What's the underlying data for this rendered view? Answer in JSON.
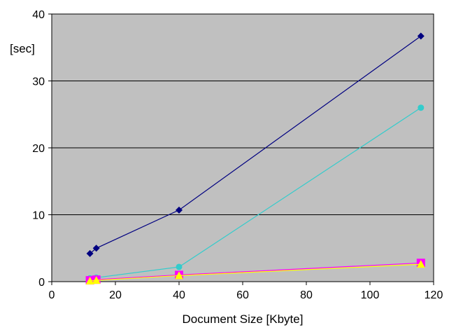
{
  "chart_data": {
    "type": "line",
    "xlabel": "Document Size [Kbyte]",
    "ylabel": "[sec]",
    "xlim": [
      0,
      120
    ],
    "ylim": [
      0,
      40
    ],
    "x_ticks": [
      0,
      20,
      40,
      60,
      80,
      100,
      120
    ],
    "y_ticks": [
      0,
      10,
      20,
      30,
      40
    ],
    "grid": {
      "y": true,
      "x": false
    },
    "plot_background": "#c0c0c0",
    "legend": "none",
    "series": [
      {
        "color": "#000080",
        "marker": "diamond",
        "x": [
          12,
          14,
          40,
          116
        ],
        "y": [
          4.2,
          5.0,
          10.7,
          36.7
        ]
      },
      {
        "color": "#33cccc",
        "marker": "circle",
        "x": [
          12,
          14,
          40,
          116
        ],
        "y": [
          0.5,
          0.6,
          2.2,
          26.0
        ]
      },
      {
        "color": "#ff00ff",
        "marker": "square",
        "x": [
          12,
          14,
          40,
          116
        ],
        "y": [
          0.2,
          0.3,
          1.0,
          2.8
        ]
      },
      {
        "color": "#ffff00",
        "marker": "triangle",
        "x": [
          12,
          14,
          40,
          116
        ],
        "y": [
          0.1,
          0.2,
          0.9,
          2.6
        ]
      }
    ]
  }
}
